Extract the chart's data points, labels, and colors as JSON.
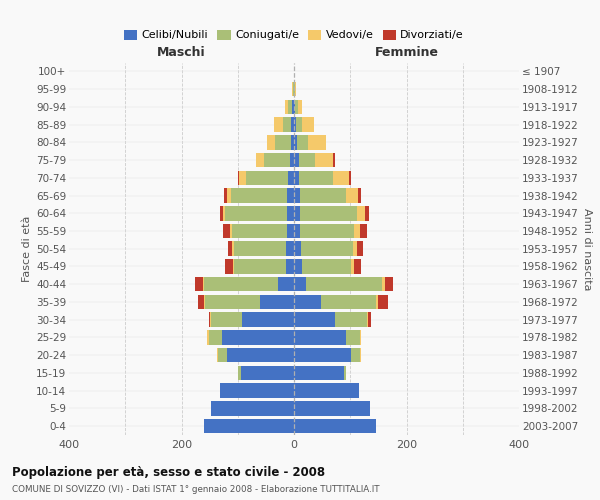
{
  "age_groups": [
    "0-4",
    "5-9",
    "10-14",
    "15-19",
    "20-24",
    "25-29",
    "30-34",
    "35-39",
    "40-44",
    "45-49",
    "50-54",
    "55-59",
    "60-64",
    "65-69",
    "70-74",
    "75-79",
    "80-84",
    "85-89",
    "90-94",
    "95-99",
    "100+"
  ],
  "birth_years": [
    "2003-2007",
    "1998-2002",
    "1993-1997",
    "1988-1992",
    "1983-1987",
    "1978-1982",
    "1973-1977",
    "1968-1972",
    "1963-1967",
    "1958-1962",
    "1953-1957",
    "1948-1952",
    "1943-1947",
    "1938-1942",
    "1933-1937",
    "1928-1932",
    "1923-1927",
    "1918-1922",
    "1913-1917",
    "1908-1912",
    "≤ 1907"
  ],
  "maschi_celibi": [
    160,
    148,
    132,
    95,
    120,
    128,
    92,
    60,
    28,
    15,
    15,
    12,
    12,
    12,
    10,
    8,
    5,
    5,
    3,
    0,
    0
  ],
  "maschi_coniugati": [
    0,
    0,
    0,
    5,
    15,
    24,
    55,
    98,
    132,
    92,
    92,
    98,
    110,
    100,
    75,
    45,
    28,
    15,
    8,
    2,
    0
  ],
  "maschi_vedovi": [
    0,
    0,
    0,
    0,
    2,
    3,
    2,
    2,
    2,
    2,
    3,
    3,
    5,
    8,
    12,
    15,
    15,
    15,
    5,
    2,
    0
  ],
  "maschi_divorziati": [
    0,
    0,
    0,
    0,
    0,
    0,
    3,
    10,
    14,
    14,
    8,
    14,
    5,
    5,
    3,
    0,
    0,
    0,
    0,
    0,
    0
  ],
  "femmine_nubili": [
    145,
    135,
    115,
    88,
    102,
    92,
    72,
    48,
    22,
    15,
    12,
    10,
    10,
    10,
    8,
    8,
    5,
    4,
    2,
    0,
    0
  ],
  "femmine_coniugate": [
    0,
    0,
    0,
    5,
    15,
    25,
    58,
    98,
    135,
    87,
    92,
    97,
    102,
    82,
    62,
    30,
    20,
    10,
    5,
    1,
    0
  ],
  "femmine_vedove": [
    0,
    0,
    0,
    0,
    2,
    2,
    2,
    3,
    5,
    5,
    8,
    10,
    14,
    22,
    28,
    32,
    32,
    22,
    8,
    3,
    0
  ],
  "femmine_divorziate": [
    0,
    0,
    0,
    0,
    0,
    0,
    5,
    18,
    14,
    12,
    10,
    12,
    8,
    5,
    3,
    3,
    0,
    0,
    0,
    0,
    0
  ],
  "colors": {
    "celibi_nubili": "#4472C4",
    "coniugati_e": "#AABF77",
    "vedovi_e": "#F5C96A",
    "divorziati_e": "#C0392B"
  },
  "xlim": 400,
  "title_main": "Popolazione per età, sesso e stato civile - 2008",
  "title_sub": "COMUNE DI SOVIZZO (VI) - Dati ISTAT 1° gennaio 2008 - Elaborazione TUTTITALIA.IT",
  "ylabel_left": "Fasce di età",
  "ylabel_right": "Anni di nascita",
  "xlabel_maschi": "Maschi",
  "xlabel_femmine": "Femmine",
  "legend_labels": [
    "Celibi/Nubili",
    "Coniugati/e",
    "Vedovi/e",
    "Divorziati/e"
  ],
  "background_color": "#f9f9f9",
  "grid_color": "#cccccc"
}
